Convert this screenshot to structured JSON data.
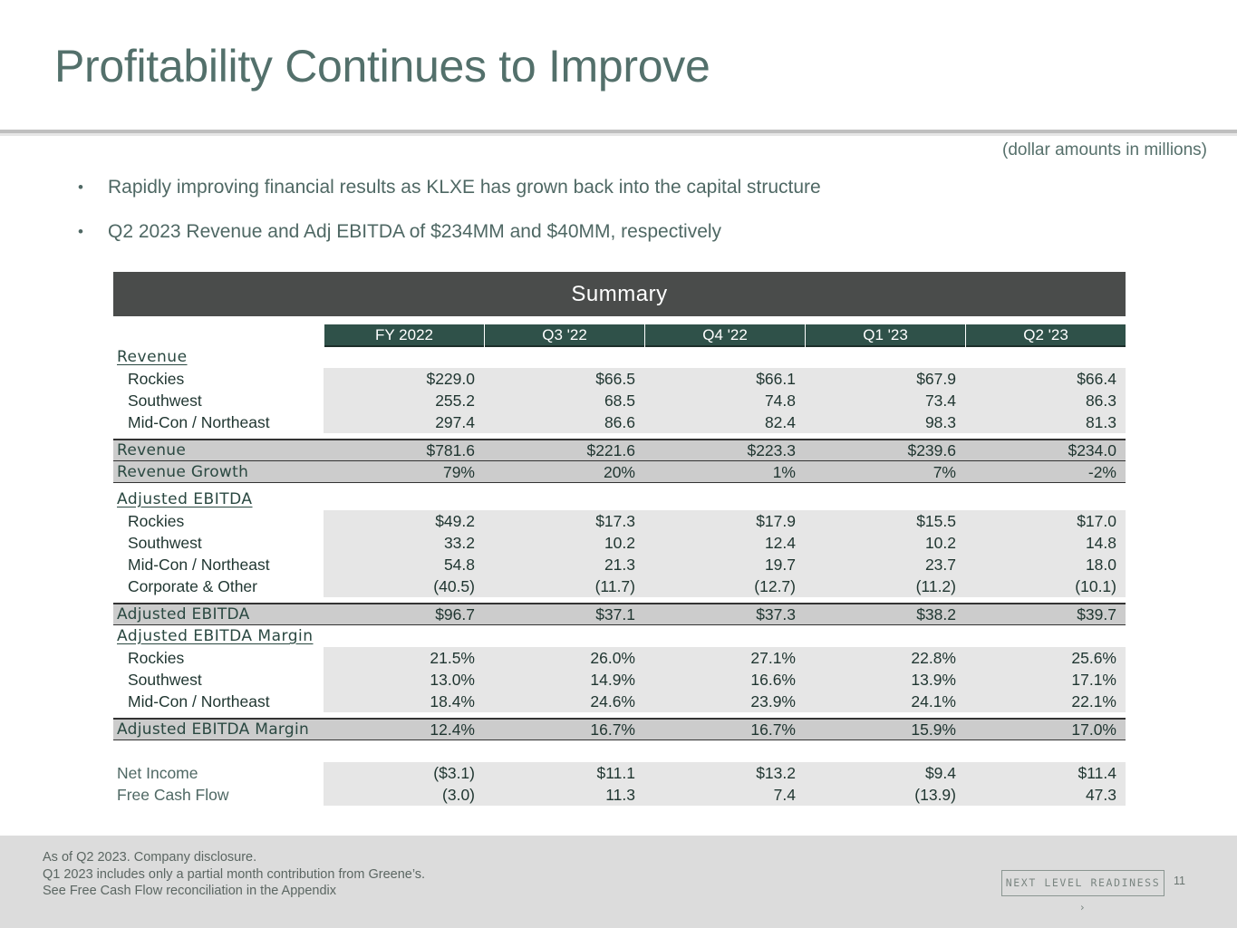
{
  "title": "Profitability Continues to Improve",
  "units_note": "(dollar amounts in millions)",
  "bullets": [
    "Rapidly improving financial results as KLXE has grown back into the capital structure",
    "Q2 2023 Revenue and Adj EBITDA of $234MM and $40MM, respectively"
  ],
  "table": {
    "banner": "Summary",
    "columns": [
      "FY 2022",
      "Q3 '22",
      "Q4 '22",
      "Q1 '23",
      "Q2 '23"
    ],
    "revenue": {
      "section_label": "Revenue",
      "rows": [
        {
          "label": "Rockies",
          "values": [
            "$229.0",
            "$66.5",
            "$66.1",
            "$67.9",
            "$66.4"
          ]
        },
        {
          "label": "Southwest",
          "values": [
            "255.2",
            "68.5",
            "74.8",
            "73.4",
            "86.3"
          ]
        },
        {
          "label": "Mid-Con / Northeast",
          "values": [
            "297.4",
            "86.6",
            "82.4",
            "98.3",
            "81.3"
          ]
        }
      ],
      "total": {
        "label": "Revenue",
        "values": [
          "$781.6",
          "$221.6",
          "$223.3",
          "$239.6",
          "$234.0"
        ]
      },
      "growth": {
        "label": "Revenue Growth",
        "values": [
          "79%",
          "20%",
          "1%",
          "7%",
          "-2%"
        ]
      }
    },
    "ebitda": {
      "section_label": "Adjusted EBITDA",
      "rows": [
        {
          "label": "Rockies",
          "values": [
            "$49.2",
            "$17.3",
            "$17.9",
            "$15.5",
            "$17.0"
          ]
        },
        {
          "label": "Southwest",
          "values": [
            "33.2",
            "10.2",
            "12.4",
            "10.2",
            "14.8"
          ]
        },
        {
          "label": "Mid-Con / Northeast",
          "values": [
            "54.8",
            "21.3",
            "19.7",
            "23.7",
            "18.0"
          ]
        },
        {
          "label": "Corporate & Other",
          "values": [
            "(40.5)",
            "(11.7)",
            "(12.7)",
            "(11.2)",
            "(10.1)"
          ]
        }
      ],
      "total": {
        "label": "Adjusted EBITDA",
        "values": [
          "$96.7",
          "$37.1",
          "$37.3",
          "$38.2",
          "$39.7"
        ]
      }
    },
    "margin": {
      "section_label": "Adjusted EBITDA Margin",
      "rows": [
        {
          "label": "Rockies",
          "values": [
            "21.5%",
            "26.0%",
            "27.1%",
            "22.8%",
            "25.6%"
          ]
        },
        {
          "label": "Southwest",
          "values": [
            "13.0%",
            "14.9%",
            "16.6%",
            "13.9%",
            "17.1%"
          ]
        },
        {
          "label": "Mid-Con / Northeast",
          "values": [
            "18.4%",
            "24.6%",
            "23.9%",
            "24.1%",
            "22.1%"
          ]
        }
      ],
      "total": {
        "label": "Adjusted EBITDA Margin",
        "values": [
          "12.4%",
          "16.7%",
          "16.7%",
          "15.9%",
          "17.0%"
        ]
      }
    },
    "other": [
      {
        "label": "Net Income",
        "values": [
          "($3.1)",
          "$11.1",
          "$13.2",
          "$9.4",
          "$11.4"
        ]
      },
      {
        "label": "Free Cash Flow",
        "values": [
          "(3.0)",
          "11.3",
          "7.4",
          "(13.9)",
          "47.3"
        ]
      }
    ]
  },
  "footer": {
    "notes": [
      "As of Q2 2023. Company disclosure.",
      "Q1 2023 includes only a partial month contribution from Greene’s.",
      "See Free Cash Flow reconciliation in the Appendix"
    ],
    "badge": "NEXT LEVEL READINESS ›",
    "page_number": "11"
  }
}
